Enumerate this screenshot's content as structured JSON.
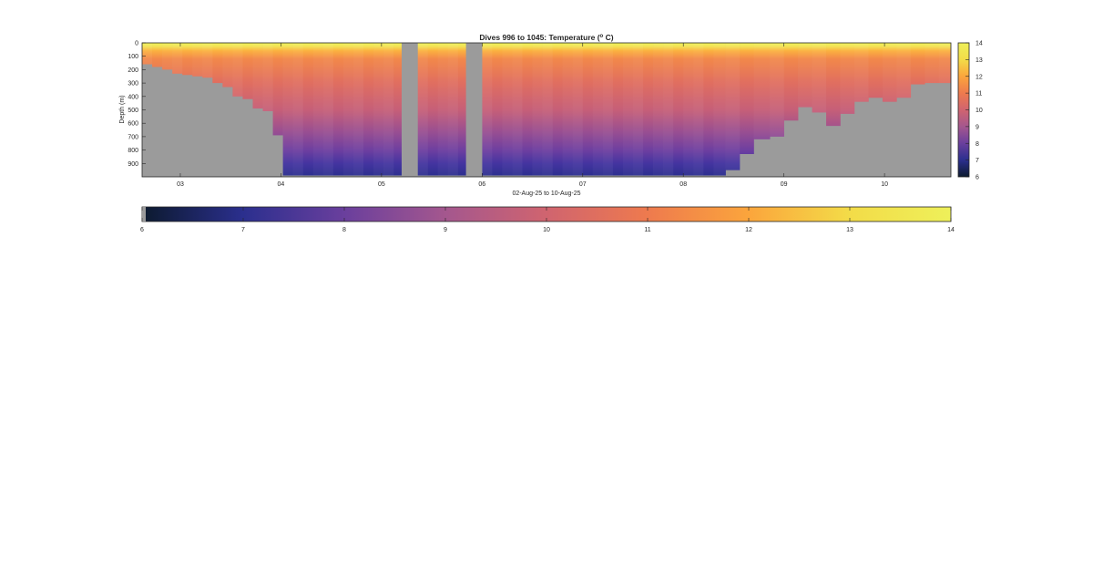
{
  "chart_data": [
    {
      "type": "heatmap",
      "title": "Dives 996 to 1045: Temperature (",
      "title_sup": "o",
      "title_suffix": " C)",
      "xlabel": "02-Aug-25 to 10-Aug-25",
      "ylabel": "Depth (m)",
      "xlim": [
        2.62,
        10.66
      ],
      "ylim": [
        0,
        1000
      ],
      "y_reversed": true,
      "x_ticks": [
        3,
        4,
        5,
        6,
        7,
        8,
        9,
        10
      ],
      "x_tick_labels": [
        "03",
        "04",
        "05",
        "06",
        "07",
        "08",
        "09",
        "10"
      ],
      "y_ticks": [
        0,
        100,
        200,
        300,
        400,
        500,
        600,
        700,
        800,
        900
      ],
      "y_tick_labels": [
        "0",
        "100",
        "200",
        "300",
        "400",
        "500",
        "600",
        "700",
        "800",
        "900"
      ],
      "color_range": [
        6,
        14
      ],
      "no_data_color": "#9b9b9b",
      "surface_color": "#eef05a",
      "colormap": [
        "#0c1a2e",
        "#2b2f8e",
        "#6a3f9d",
        "#a4578e",
        "#d0646f",
        "#ee7a4e",
        "#fba53c",
        "#f3dc48",
        "#eef05a"
      ],
      "profiles": {
        "x": [
          2.62,
          2.72,
          2.82,
          2.92,
          3.02,
          3.12,
          3.22,
          3.32,
          3.42,
          3.52,
          3.62,
          3.72,
          3.82,
          3.92,
          4.02,
          4.12,
          4.22,
          4.32,
          4.42,
          4.52,
          4.62,
          4.72,
          4.82,
          4.92,
          5.02,
          5.12,
          5.2,
          5.36,
          5.46,
          5.56,
          5.66,
          5.76,
          5.84,
          6.0,
          6.1,
          6.2,
          6.3,
          6.4,
          6.5,
          6.6,
          6.7,
          6.8,
          6.9,
          7.0,
          7.1,
          7.2,
          7.3,
          7.4,
          7.5,
          7.6,
          7.7,
          7.8,
          7.9,
          8.0,
          8.1,
          8.2,
          8.3,
          8.42,
          8.56,
          8.7,
          8.86,
          9.0,
          9.14,
          9.28,
          9.42,
          9.56,
          9.7,
          9.84,
          9.98,
          10.12,
          10.26,
          10.4,
          10.54,
          10.66
        ],
        "bottom_depth": [
          160,
          180,
          200,
          230,
          240,
          250,
          260,
          300,
          330,
          400,
          420,
          490,
          510,
          690,
          990,
          990,
          990,
          990,
          990,
          990,
          990,
          990,
          990,
          990,
          990,
          990,
          0,
          990,
          990,
          990,
          990,
          990,
          0,
          990,
          990,
          990,
          990,
          990,
          990,
          990,
          990,
          990,
          990,
          990,
          990,
          990,
          990,
          990,
          990,
          990,
          990,
          990,
          990,
          990,
          990,
          990,
          990,
          950,
          830,
          720,
          700,
          580,
          480,
          520,
          620,
          530,
          440,
          410,
          440,
          410,
          310,
          300,
          300,
          300
        ]
      },
      "gaps": [
        [
          5.2,
          5.36
        ],
        [
          5.84,
          6.0
        ]
      ]
    },
    {
      "type": "colorbar",
      "orientation": "vertical",
      "range": [
        6,
        14
      ],
      "tick_labels": [
        "6",
        "7",
        "8",
        "9",
        "10",
        "11",
        "12",
        "13",
        "14"
      ]
    },
    {
      "type": "colorbar",
      "orientation": "horizontal",
      "range": [
        6,
        14
      ],
      "tick_labels": [
        "6",
        "7",
        "8",
        "9",
        "10",
        "11",
        "12",
        "13",
        "14"
      ]
    }
  ]
}
